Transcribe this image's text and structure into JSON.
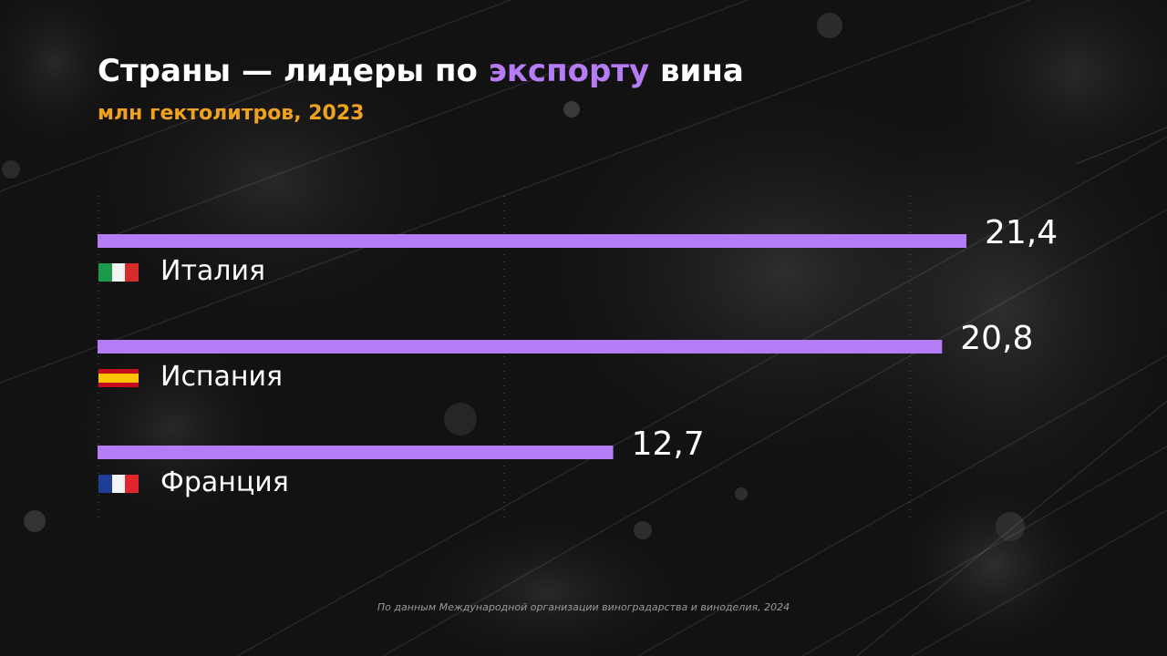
{
  "title": {
    "before": "Страны — лидеры по ",
    "highlight": "экспорту",
    "after": " вина"
  },
  "subtitle": "млн гектолитров, 2023",
  "source": "По данным Международной организации виноградарства и виноделия, 2024",
  "colors": {
    "bar": "#b57cf5",
    "highlight": "#b57cf5",
    "subtitle": "#f0a21e",
    "background": "#121212"
  },
  "countries": [
    {
      "name": "Италия",
      "value_label": "21,4",
      "flag": "italy-flag-icon",
      "flag_colors": [
        "#1a9a4a",
        "#f4f4f4",
        "#d52b2b"
      ]
    },
    {
      "name": "Испания",
      "value_label": "20,8",
      "flag": "spain-flag-icon",
      "flag_colors": [
        "#c60b1e",
        "#ffc400",
        "#c60b1e"
      ]
    },
    {
      "name": "Франция",
      "value_label": "12,7",
      "flag": "france-flag-icon",
      "flag_colors": [
        "#1f3f97",
        "#f4f4f4",
        "#e1262d"
      ]
    }
  ],
  "chart_data": {
    "type": "bar",
    "orientation": "horizontal",
    "title": "Страны — лидеры по экспорту вина",
    "subtitle": "млн гектолитров, 2023",
    "categories": [
      "Италия",
      "Испания",
      "Франция"
    ],
    "values": [
      21.4,
      20.8,
      12.7
    ],
    "data_labels": [
      "21,4",
      "20,8",
      "12,7"
    ],
    "grid": true,
    "legend": "none"
  }
}
